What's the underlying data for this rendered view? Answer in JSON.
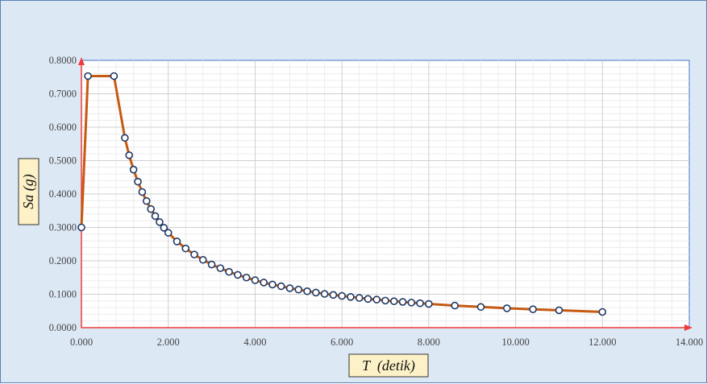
{
  "chart_data": {
    "type": "line",
    "xlabel": "T  (detik)",
    "ylabel": "Sa (g)",
    "xlim": [
      0,
      14
    ],
    "ylim": [
      0,
      0.8
    ],
    "x_ticks": [
      "0.000",
      "2.000",
      "4.000",
      "6.000",
      "8.000",
      "10.000",
      "12.000",
      "14.000"
    ],
    "y_ticks": [
      "0.0000",
      "0.1000",
      "0.2000",
      "0.3000",
      "0.4000",
      "0.5000",
      "0.6000",
      "0.7000",
      "0.8000"
    ],
    "grid": true,
    "legend": "none",
    "series": [
      {
        "line_color": "#c55a11",
        "marker_edge": "#1f3864",
        "marker_fill": "#ffffff",
        "x": [
          0.0,
          0.15,
          0.75,
          1.0,
          1.1,
          1.2,
          1.3,
          1.4,
          1.5,
          1.6,
          1.7,
          1.8,
          1.9,
          2.0,
          2.2,
          2.4,
          2.6,
          2.8,
          3.0,
          3.2,
          3.4,
          3.6,
          3.8,
          4.0,
          4.2,
          4.4,
          4.6,
          4.8,
          5.0,
          5.2,
          5.4,
          5.6,
          5.8,
          6.0,
          6.2,
          6.4,
          6.6,
          6.8,
          7.0,
          7.2,
          7.4,
          7.6,
          7.8,
          8.0,
          8.6,
          9.2,
          9.8,
          10.4,
          11.0,
          12.0
        ],
        "y": [
          0.3,
          0.753,
          0.753,
          0.568,
          0.516,
          0.473,
          0.437,
          0.406,
          0.379,
          0.355,
          0.334,
          0.316,
          0.299,
          0.284,
          0.258,
          0.237,
          0.219,
          0.203,
          0.189,
          0.178,
          0.167,
          0.158,
          0.15,
          0.142,
          0.135,
          0.129,
          0.124,
          0.118,
          0.114,
          0.109,
          0.105,
          0.101,
          0.098,
          0.095,
          0.092,
          0.089,
          0.086,
          0.084,
          0.081,
          0.079,
          0.077,
          0.075,
          0.073,
          0.071,
          0.066,
          0.062,
          0.058,
          0.055,
          0.052,
          0.047
        ]
      }
    ]
  }
}
